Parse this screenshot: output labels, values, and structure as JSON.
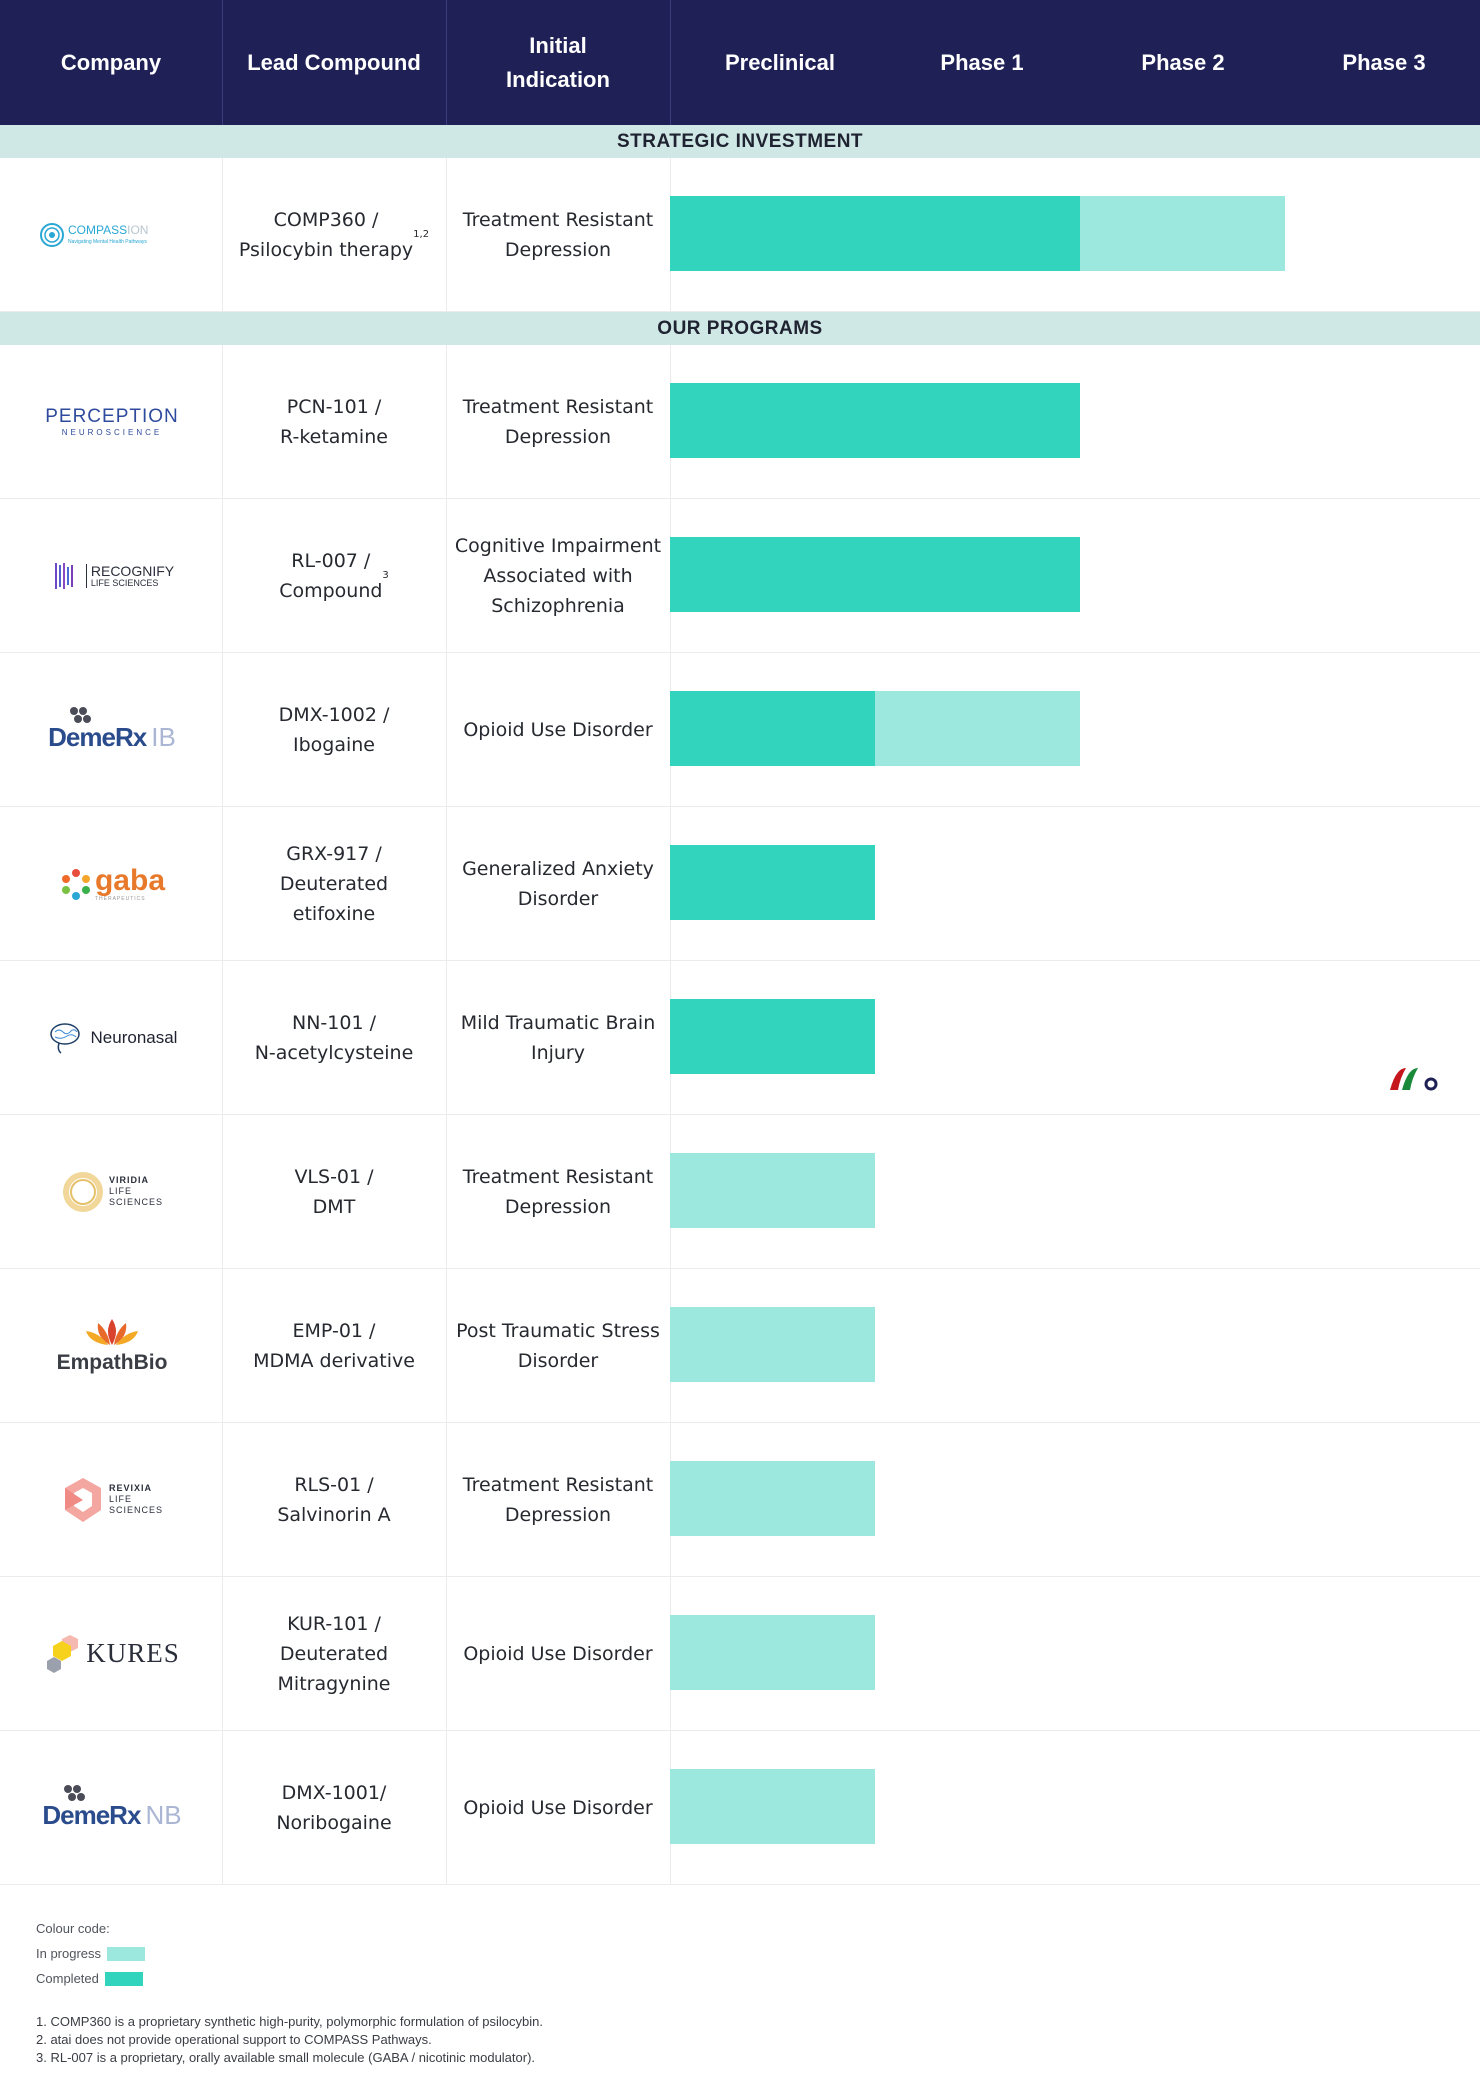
{
  "colors": {
    "header_bg": "#1f2156",
    "section_bg": "#cfe8e6",
    "completed": "#33d4bd",
    "in_progress": "#9de8de"
  },
  "header": {
    "company": "Company",
    "lead_compound": "Lead Compound",
    "initial_indication": "Initial\nIndication",
    "preclinical": "Preclinical",
    "phase1": "Phase 1",
    "phase2": "Phase 2",
    "phase3": "Phase 3"
  },
  "sections": {
    "strategic": "STRATEGIC INVESTMENT",
    "programs": "OUR PROGRAMS"
  },
  "logos": {
    "compass": {
      "name": "COMPASS",
      "suffix": "ION",
      "tagline": "Navigating Mental Health Pathways"
    },
    "perception": {
      "name": "PERCEPTION",
      "sub": "NEUROSCIENCE"
    },
    "recognify": {
      "name": "RECOGNIFY",
      "sub": "LIFE SCIENCES"
    },
    "demerx_ib": {
      "name": "DemeRx",
      "suffix": "IB"
    },
    "gaba": {
      "name": "gaba",
      "sub": "THERAPEUTICS"
    },
    "neuronasal": {
      "name": "Neuronasal"
    },
    "viridia": {
      "l1": "VIRIDIA",
      "l2": "LIFE",
      "l3": "SCIENCES"
    },
    "empathbio": {
      "name": "EmpathBio"
    },
    "revixia": {
      "l1": "REVIXIA",
      "l2": "LIFE",
      "l3": "SCIENCES"
    },
    "kures": {
      "name": "KURES"
    },
    "demerx_nb": {
      "name": "DemeRx",
      "suffix": "NB"
    }
  },
  "chart_data": {
    "type": "table",
    "stages": [
      "Preclinical",
      "Phase 1",
      "Phase 2",
      "Phase 3"
    ],
    "rows": [
      {
        "section": "STRATEGIC INVESTMENT",
        "compound": "COMP360 /\nPsilocybin therapy",
        "compound_sup": "1,2",
        "indication": "Treatment Resistant\nDepression",
        "completed_stages": 2,
        "in_progress_stages": 1
      },
      {
        "section": "OUR PROGRAMS",
        "compound": "PCN-101 /\nR-ketamine",
        "compound_sup": "",
        "indication": "Treatment Resistant\nDepression",
        "completed_stages": 2,
        "in_progress_stages": 0
      },
      {
        "section": "OUR PROGRAMS",
        "compound": "RL-007 /\nCompound",
        "compound_sup": "3",
        "indication": "Cognitive Impairment\nAssociated with\nSchizophrenia",
        "completed_stages": 2,
        "in_progress_stages": 0
      },
      {
        "section": "OUR PROGRAMS",
        "compound": "DMX-1002 /\nIbogaine",
        "compound_sup": "",
        "indication": "Opioid Use Disorder",
        "completed_stages": 1,
        "in_progress_stages": 1
      },
      {
        "section": "OUR PROGRAMS",
        "compound": "GRX-917 /\nDeuterated\netifoxine",
        "compound_sup": "",
        "indication": "Generalized Anxiety\nDisorder",
        "completed_stages": 1,
        "in_progress_stages": 0
      },
      {
        "section": "OUR PROGRAMS",
        "compound": "NN-101 /\nN-acetylcysteine",
        "compound_sup": "",
        "indication": "Mild Traumatic Brain\nInjury",
        "completed_stages": 1,
        "in_progress_stages": 0
      },
      {
        "section": "OUR PROGRAMS",
        "compound": "VLS-01 /\nDMT",
        "compound_sup": "",
        "indication": "Treatment Resistant\nDepression",
        "completed_stages": 0,
        "in_progress_stages": 1
      },
      {
        "section": "OUR PROGRAMS",
        "compound": "EMP-01 /\nMDMA derivative",
        "compound_sup": "",
        "indication": "Post Traumatic Stress\nDisorder",
        "completed_stages": 0,
        "in_progress_stages": 1
      },
      {
        "section": "OUR PROGRAMS",
        "compound": "RLS-01 /\nSalvinorin A",
        "compound_sup": "",
        "indication": "Treatment Resistant\nDepression",
        "completed_stages": 0,
        "in_progress_stages": 1
      },
      {
        "section": "OUR PROGRAMS",
        "compound": "KUR-101 /\nDeuterated\nMitragynine",
        "compound_sup": "",
        "indication": "Opioid Use Disorder",
        "completed_stages": 0,
        "in_progress_stages": 1
      },
      {
        "section": "OUR PROGRAMS",
        "compound": "DMX-1001/\nNoribogaine",
        "compound_sup": "",
        "indication": "Opioid Use Disorder",
        "completed_stages": 0,
        "in_progress_stages": 1
      }
    ]
  },
  "legend": {
    "title": "Colour code:",
    "in_progress": "In progress",
    "completed": "Completed"
  },
  "footnotes": [
    "1. COMP360 is a proprietary synthetic high-purity, polymorphic formulation of psilocybin.",
    "2. atai does not provide operational support to COMPASS Pathways.",
    "3. RL-007 is a proprietary, orally available small molecule (GABA / nicotinic modulator)."
  ]
}
